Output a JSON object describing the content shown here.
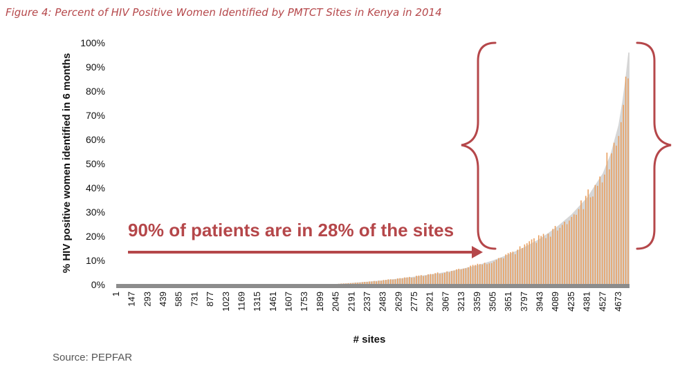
{
  "figure": {
    "title": "Figure 4: Percent of HIV Positive Women Identified by PMTCT Sites in Kenya in 2014",
    "source": "Source: PEPFAR"
  },
  "chart_data": {
    "type": "bar",
    "xlabel": "# sites",
    "ylabel": "% HIV positive women identified in 6 months",
    "ylim": [
      0,
      100
    ],
    "yticks": [
      "0%",
      "10%",
      "20%",
      "30%",
      "40%",
      "50%",
      "60%",
      "70%",
      "80%",
      "90%",
      "100%"
    ],
    "x_tick_labels": [
      "1",
      "147",
      "293",
      "439",
      "585",
      "731",
      "877",
      "1023",
      "1169",
      "1315",
      "1461",
      "1607",
      "1753",
      "1899",
      "2045",
      "2191",
      "2337",
      "2483",
      "2629",
      "2775",
      "2921",
      "3067",
      "3213",
      "3359",
      "3505",
      "3651",
      "3797",
      "3943",
      "4089",
      "4235",
      "4381",
      "4527",
      "4673"
    ],
    "x_range": [
      1,
      4776
    ],
    "grid": false,
    "legend": "none",
    "bar_color": "#e9a060",
    "fill_color": "#d6d6d6",
    "baseline_color": "#8c8c8c",
    "curve": {
      "site_start": 2045,
      "site_end": 4776,
      "values": [
        [
          2045,
          0.3
        ],
        [
          2191,
          0.7
        ],
        [
          2337,
          1.2
        ],
        [
          2483,
          1.8
        ],
        [
          2629,
          2.5
        ],
        [
          2775,
          3.3
        ],
        [
          2921,
          4.2
        ],
        [
          3067,
          5.2
        ],
        [
          3213,
          6.5
        ],
        [
          3359,
          8.0
        ],
        [
          3505,
          10.0
        ],
        [
          3651,
          12.5
        ],
        [
          3797,
          15.5
        ],
        [
          3943,
          19.0
        ],
        [
          4089,
          23.5
        ],
        [
          4235,
          29.0
        ],
        [
          4381,
          36.0
        ],
        [
          4527,
          46.0
        ],
        [
          4600,
          54.0
        ],
        [
          4673,
          66.0
        ],
        [
          4710,
          76.0
        ],
        [
          4740,
          86.0
        ],
        [
          4765,
          96.0
        ]
      ]
    },
    "annotation": {
      "text": "90% of patients are in 28% of the sites",
      "color": "#b5474a"
    }
  }
}
